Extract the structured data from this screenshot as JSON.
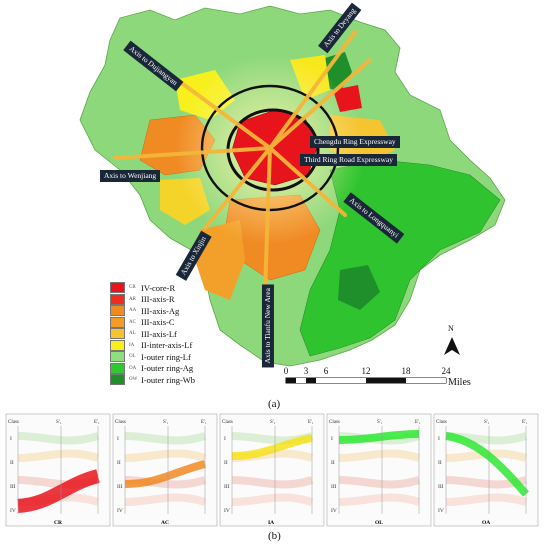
{
  "map": {
    "axis_labels": [
      "Axis to Deyang",
      "Axis to Dujiangyan",
      "Axis to Wenjiang",
      "Chengdu Ring Expressway",
      "Third Ring Road Expressway",
      "Axis to Longquanyi",
      "Axis to Tianfu New Area",
      "Axis to Xinjin"
    ],
    "legend": [
      {
        "code": "CR",
        "label": "IV-core-R",
        "color": "#e8141b"
      },
      {
        "code": "AR",
        "label": "III-axis-R",
        "color": "#f02b1f"
      },
      {
        "code": "AA",
        "label": "III-axis-Ag",
        "color": "#f08a23"
      },
      {
        "code": "AC",
        "label": "III-axis-C",
        "color": "#f39a27"
      },
      {
        "code": "AL",
        "label": "III-axis-Lf",
        "color": "#f4c431"
      },
      {
        "code": "IA",
        "label": "II-inter-axis-Lf",
        "color": "#f7f01c"
      },
      {
        "code": "OL",
        "label": "I-outer ring-Lf",
        "color": "#8ee07e"
      },
      {
        "code": "OA",
        "label": "I-outer ring-Ag",
        "color": "#2fc92f"
      },
      {
        "code": "OW",
        "label": "I-outer ring-Wb",
        "color": "#1e8f2a"
      }
    ],
    "north_label": "N",
    "scale_ticks": [
      "0",
      "3",
      "6",
      "12",
      "18",
      "24"
    ],
    "scale_unit": "Miles"
  },
  "caption_a": "(a)",
  "caption_b": "(b)",
  "panels": [
    {
      "code": "CR",
      "class_header": "Class",
      "s_label": "S'₁",
      "e_label": "E'₁",
      "color": "#e8141b"
    },
    {
      "code": "AC",
      "class_header": "Class",
      "s_label": "S'₁",
      "e_label": "E'₁",
      "color": "#f08a23"
    },
    {
      "code": "IA",
      "class_header": "Class",
      "s_label": "S'₁",
      "e_label": "E'₁",
      "color": "#f4e21c"
    },
    {
      "code": "OL",
      "class_header": "Class",
      "s_label": "S'₁",
      "e_label": "E'₁",
      "color": "#2ee832"
    },
    {
      "code": "OA",
      "class_header": "Class",
      "s_label": "S'₁",
      "e_label": "E'₁",
      "color": "#2ee832"
    }
  ],
  "class_levels": [
    "I",
    "II",
    "III",
    "IV"
  ]
}
